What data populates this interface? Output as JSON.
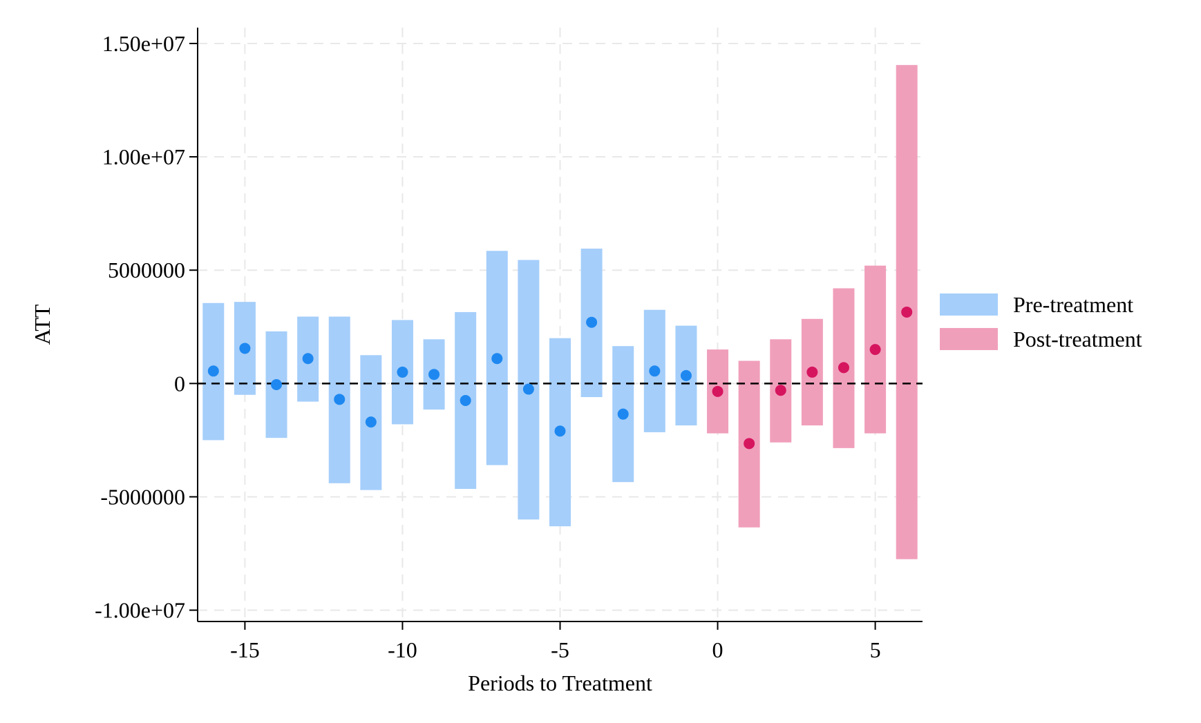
{
  "chart_data": {
    "type": "scatter",
    "title": "",
    "xlabel": "Periods to Treatment",
    "ylabel": "ATT",
    "xlim": [
      -16.5,
      6.5
    ],
    "ylim": [
      -10500000,
      15700000
    ],
    "x_ticks": [
      {
        "value": -15,
        "label": "-15"
      },
      {
        "value": -10,
        "label": "-10"
      },
      {
        "value": -5,
        "label": "-5"
      },
      {
        "value": 0,
        "label": "0"
      },
      {
        "value": 5,
        "label": "5"
      }
    ],
    "y_ticks": [
      {
        "value": 15000000,
        "label": "1.50e+07"
      },
      {
        "value": 10000000,
        "label": "1.00e+07"
      },
      {
        "value": 5000000,
        "label": "5000000"
      },
      {
        "value": 0,
        "label": "0"
      },
      {
        "value": -5000000,
        "label": "-5000000"
      },
      {
        "value": -10000000,
        "label": "-1.00e+07"
      }
    ],
    "grid": true,
    "reference_line": {
      "y": 0,
      "style": "dashed",
      "color": "#000000"
    },
    "legend": {
      "position": "right"
    },
    "series": [
      {
        "name": "Pre-treatment",
        "bar_color": "#A5CEFA",
        "point_color": "#1E88F0",
        "points": [
          {
            "x": -16,
            "y": 550000,
            "lo": -2500000,
            "hi": 3550000
          },
          {
            "x": -15,
            "y": 1550000,
            "lo": -500000,
            "hi": 3600000
          },
          {
            "x": -14,
            "y": -50000,
            "lo": -2400000,
            "hi": 2300000
          },
          {
            "x": -13,
            "y": 1100000,
            "lo": -800000,
            "hi": 2950000
          },
          {
            "x": -12,
            "y": -700000,
            "lo": -4400000,
            "hi": 2950000
          },
          {
            "x": -11,
            "y": -1700000,
            "lo": -4700000,
            "hi": 1250000
          },
          {
            "x": -10,
            "y": 500000,
            "lo": -1800000,
            "hi": 2800000
          },
          {
            "x": -9,
            "y": 400000,
            "lo": -1150000,
            "hi": 1950000
          },
          {
            "x": -8,
            "y": -750000,
            "lo": -4650000,
            "hi": 3150000
          },
          {
            "x": -7,
            "y": 1100000,
            "lo": -3600000,
            "hi": 5850000
          },
          {
            "x": -6,
            "y": -250000,
            "lo": -6000000,
            "hi": 5450000
          },
          {
            "x": -5,
            "y": -2100000,
            "lo": -6300000,
            "hi": 2000000
          },
          {
            "x": -4,
            "y": 2700000,
            "lo": -600000,
            "hi": 5950000
          },
          {
            "x": -3,
            "y": -1350000,
            "lo": -4350000,
            "hi": 1650000
          },
          {
            "x": -2,
            "y": 550000,
            "lo": -2150000,
            "hi": 3250000
          },
          {
            "x": -1,
            "y": 350000,
            "lo": -1850000,
            "hi": 2550000
          }
        ]
      },
      {
        "name": "Post-treatment",
        "bar_color": "#F09FBB",
        "point_color": "#D6155F",
        "points": [
          {
            "x": 0,
            "y": -350000,
            "lo": -2200000,
            "hi": 1500000
          },
          {
            "x": 1,
            "y": -2650000,
            "lo": -6350000,
            "hi": 1000000
          },
          {
            "x": 2,
            "y": -300000,
            "lo": -2600000,
            "hi": 1950000
          },
          {
            "x": 3,
            "y": 500000,
            "lo": -1850000,
            "hi": 2850000
          },
          {
            "x": 4,
            "y": 700000,
            "lo": -2850000,
            "hi": 4200000
          },
          {
            "x": 5,
            "y": 1500000,
            "lo": -2200000,
            "hi": 5200000
          },
          {
            "x": 6,
            "y": 3150000,
            "lo": -7750000,
            "hi": 14050000
          }
        ]
      }
    ]
  }
}
